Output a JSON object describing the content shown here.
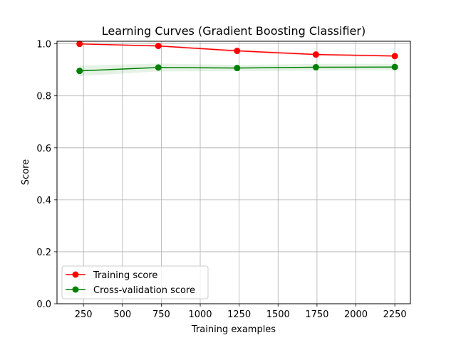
{
  "chart_data": {
    "type": "line",
    "title": "Learning Curves (Gradient Boosting Classifier)",
    "xlabel": "Training examples",
    "ylabel": "Score",
    "xlim": [
      80,
      2350
    ],
    "ylim": [
      0.0,
      1.01
    ],
    "xticks": [
      250,
      500,
      750,
      1000,
      1250,
      1500,
      1750,
      2000,
      2250
    ],
    "yticks": [
      0.0,
      0.2,
      0.4,
      0.6,
      0.8,
      1.0
    ],
    "xtick_labels": [
      "250",
      "500",
      "750",
      "1000",
      "1250",
      "1500",
      "1750",
      "2000",
      "2250"
    ],
    "ytick_labels": [
      "0.0",
      "0.2",
      "0.4",
      "0.6",
      "0.8",
      "1.0"
    ],
    "grid": true,
    "legend_position": "lower-left",
    "x": [
      225,
      731,
      1237,
      1743,
      2250
    ],
    "series": [
      {
        "name": "Training score",
        "color": "#ff0000",
        "values": [
          1.0,
          0.992,
          0.973,
          0.959,
          0.953
        ],
        "band": [
          0.0,
          0.004,
          0.006,
          0.005,
          0.004
        ]
      },
      {
        "name": "Cross-validation score",
        "color": "#008000",
        "values": [
          0.896,
          0.909,
          0.907,
          0.91,
          0.911
        ],
        "band": [
          0.02,
          0.015,
          0.012,
          0.013,
          0.012
        ]
      }
    ]
  }
}
